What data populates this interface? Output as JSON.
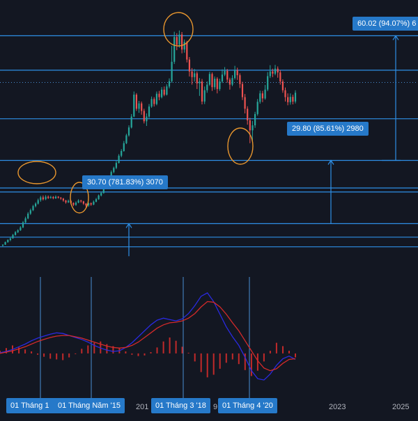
{
  "chart_data": {
    "type": "candlestick",
    "price": {
      "candles": [
        [
          3.8,
          4.1,
          3.5,
          4.2
        ],
        [
          4.1,
          4.9,
          4.0,
          5.1
        ],
        [
          4.9,
          5.6,
          4.7,
          5.8
        ],
        [
          5.6,
          6.1,
          5.2,
          6.4
        ],
        [
          6.1,
          7.2,
          6.0,
          7.5
        ],
        [
          7.2,
          8.1,
          7.0,
          8.4
        ],
        [
          8.1,
          8.7,
          7.8,
          9.0
        ],
        [
          8.7,
          9.6,
          8.5,
          10.0
        ],
        [
          9.6,
          11.2,
          9.4,
          11.6
        ],
        [
          11.2,
          12.5,
          11.0,
          13.0
        ],
        [
          12.5,
          14.0,
          12.2,
          14.5
        ],
        [
          14.0,
          15.1,
          13.6,
          15.6
        ],
        [
          15.1,
          16.4,
          14.8,
          16.8
        ],
        [
          16.4,
          17.2,
          16.0,
          17.6
        ],
        [
          17.2,
          18.3,
          16.9,
          18.8
        ],
        [
          18.3,
          19.2,
          17.8,
          19.7
        ],
        [
          19.2,
          18.6,
          18.2,
          19.8
        ],
        [
          18.6,
          19.4,
          18.3,
          19.9
        ],
        [
          19.4,
          19.0,
          18.7,
          19.8
        ],
        [
          19.0,
          19.3,
          18.8,
          19.7
        ],
        [
          19.3,
          18.9,
          18.6,
          19.6
        ],
        [
          18.9,
          19.4,
          18.7,
          19.8
        ],
        [
          19.4,
          19.1,
          18.8,
          19.6
        ],
        [
          19.1,
          18.8,
          18.4,
          19.3
        ],
        [
          18.8,
          18.2,
          17.8,
          19.0
        ],
        [
          18.2,
          17.6,
          17.2,
          18.4
        ],
        [
          17.6,
          18.1,
          17.4,
          18.5
        ],
        [
          18.1,
          17.4,
          16.9,
          18.3
        ],
        [
          17.4,
          16.8,
          16.4,
          17.6
        ],
        [
          16.8,
          17.5,
          16.5,
          17.9
        ],
        [
          17.5,
          18.2,
          17.3,
          18.6
        ],
        [
          18.2,
          17.9,
          17.5,
          18.4
        ],
        [
          17.9,
          17.2,
          16.8,
          18.1
        ],
        [
          17.2,
          16.6,
          15.6,
          17.4
        ],
        [
          16.6,
          17.3,
          16.2,
          17.6
        ],
        [
          17.3,
          16.9,
          16.5,
          17.6
        ],
        [
          16.9,
          17.8,
          16.7,
          18.2
        ],
        [
          17.8,
          18.6,
          17.6,
          19.0
        ],
        [
          18.6,
          19.8,
          18.4,
          20.1
        ],
        [
          19.8,
          20.6,
          19.5,
          21.0
        ],
        [
          20.6,
          22.1,
          20.4,
          22.5
        ],
        [
          22.1,
          23.8,
          21.9,
          24.2
        ],
        [
          23.8,
          25.2,
          23.4,
          25.6
        ],
        [
          25.2,
          27.3,
          25.0,
          27.8
        ],
        [
          27.3,
          28.6,
          26.9,
          29.0
        ],
        [
          28.6,
          30.2,
          28.2,
          30.8
        ],
        [
          30.2,
          32.5,
          30.0,
          33.0
        ],
        [
          32.5,
          34.0,
          32.0,
          34.6
        ],
        [
          34.0,
          36.5,
          33.8,
          37.2
        ],
        [
          36.5,
          39.0,
          36.2,
          39.5
        ],
        [
          39.0,
          41.5,
          38.6,
          42.2
        ],
        [
          41.5,
          45.0,
          41.2,
          45.8
        ],
        [
          45.0,
          52.0,
          44.8,
          53.0
        ],
        [
          52.0,
          47.5,
          46.8,
          52.5
        ],
        [
          47.5,
          49.2,
          46.2,
          50.0
        ],
        [
          49.2,
          46.8,
          45.6,
          49.8
        ],
        [
          46.8,
          43.5,
          42.8,
          47.5
        ],
        [
          43.5,
          45.0,
          42.0,
          46.0
        ],
        [
          45.0,
          48.2,
          44.5,
          49.0
        ],
        [
          48.2,
          50.6,
          47.8,
          51.4
        ],
        [
          50.6,
          49.0,
          48.2,
          51.2
        ],
        [
          49.0,
          52.3,
          48.6,
          53.0
        ],
        [
          52.3,
          51.2,
          50.2,
          53.2
        ],
        [
          51.2,
          53.6,
          50.8,
          54.4
        ],
        [
          53.6,
          52.0,
          51.5,
          54.6
        ],
        [
          52.0,
          54.6,
          51.7,
          55.3
        ],
        [
          54.6,
          56.3,
          54.0,
          57.2
        ],
        [
          56.3,
          62.5,
          55.8,
          67.6
        ],
        [
          62.5,
          70.4,
          61.8,
          72.1
        ],
        [
          70.4,
          67.9,
          66.2,
          71.6
        ],
        [
          67.9,
          71.2,
          67.0,
          72.5
        ],
        [
          71.2,
          66.4,
          65.2,
          72.0
        ],
        [
          66.4,
          68.8,
          65.4,
          69.6
        ],
        [
          68.8,
          63.2,
          62.3,
          69.2
        ],
        [
          63.2,
          59.4,
          57.8,
          64.0
        ],
        [
          59.4,
          57.6,
          55.2,
          60.5
        ],
        [
          57.6,
          58.8,
          56.2,
          60.2
        ],
        [
          58.8,
          55.6,
          53.8,
          59.4
        ],
        [
          55.6,
          56.2,
          51.6,
          57.3
        ],
        [
          56.2,
          49.8,
          48.9,
          57.0
        ],
        [
          49.8,
          53.4,
          49.0,
          54.6
        ],
        [
          53.4,
          55.2,
          52.6,
          56.2
        ],
        [
          55.2,
          58.6,
          54.8,
          59.3
        ],
        [
          58.6,
          54.4,
          53.2,
          59.1
        ],
        [
          54.4,
          57.1,
          53.6,
          57.8
        ],
        [
          57.1,
          53.8,
          52.4,
          57.6
        ],
        [
          53.8,
          56.2,
          53.2,
          57.1
        ],
        [
          56.2,
          58.4,
          55.7,
          60.1
        ],
        [
          58.4,
          59.6,
          57.9,
          60.8
        ],
        [
          59.6,
          56.8,
          55.8,
          60.2
        ],
        [
          56.8,
          55.2,
          53.6,
          57.4
        ],
        [
          55.2,
          57.3,
          54.7,
          58.2
        ],
        [
          57.3,
          59.8,
          56.8,
          61.2
        ],
        [
          59.8,
          58.2,
          56.7,
          60.6
        ],
        [
          58.2,
          55.4,
          54.1,
          58.8
        ],
        [
          55.4,
          51.2,
          50.3,
          56.1
        ],
        [
          51.2,
          47.5,
          46.0,
          52.2
        ],
        [
          47.5,
          43.8,
          42.4,
          48.3
        ],
        [
          43.8,
          40.6,
          36.5,
          44.6
        ],
        [
          40.6,
          42.2,
          37.2,
          43.6
        ],
        [
          42.2,
          45.8,
          41.4,
          46.5
        ],
        [
          45.8,
          49.7,
          45.3,
          50.6
        ],
        [
          49.7,
          52.4,
          49.1,
          53.3
        ],
        [
          52.4,
          50.8,
          49.6,
          53.2
        ],
        [
          50.8,
          53.6,
          50.4,
          55.1
        ],
        [
          53.6,
          57.9,
          53.1,
          59.2
        ],
        [
          57.9,
          59.4,
          57.3,
          61.4
        ],
        [
          59.4,
          58.7,
          57.6,
          60.3
        ],
        [
          58.7,
          60.3,
          58.2,
          61.5
        ],
        [
          60.3,
          59.1,
          57.4,
          61.0
        ],
        [
          59.1,
          56.2,
          55.2,
          59.8
        ],
        [
          56.2,
          53.4,
          52.6,
          56.9
        ],
        [
          53.4,
          51.2,
          49.8,
          54.3
        ],
        [
          51.2,
          49.6,
          48.6,
          52.4
        ],
        [
          49.6,
          51.3,
          48.8,
          52.4
        ],
        [
          51.3,
          49.8,
          48.9,
          52.0
        ],
        [
          49.8,
          52.6,
          49.2,
          53.4
        ]
      ],
      "y_range": [
        0,
        80
      ],
      "horizontal_levels": [
        3.4,
        6.5,
        10.8,
        20.9,
        22.2,
        31.0,
        44.3,
        55.9,
        59.8,
        70.8
      ],
      "dotted_level": 55.9,
      "annotations": [
        {
          "text": "60.02 (94.07%) 6",
          "kind": "measure"
        },
        {
          "text": "29.80 (85.61%) 2980",
          "kind": "measure"
        },
        {
          "text": "30.70 (781.83%) 3070",
          "kind": "measure"
        }
      ]
    },
    "macd": {
      "macd_line": [
        0.1,
        0.3,
        0.6,
        1.0,
        1.4,
        1.9,
        2.3,
        2.6,
        2.9,
        3.1,
        3.0,
        2.7,
        2.4,
        2.1,
        1.7,
        1.2,
        0.8,
        0.5,
        0.3,
        0.4,
        0.9,
        1.6,
        2.5,
        3.4,
        4.3,
        5.0,
        5.3,
        5.1,
        4.9,
        5.2,
        6.0,
        7.2,
        8.6,
        9.1,
        7.8,
        5.9,
        4.0,
        2.5,
        1.2,
        -0.6,
        -2.6,
        -3.8,
        -4.0,
        -3.1,
        -1.8,
        -0.8,
        -0.4,
        -0.9
      ],
      "signal_line": [
        0.0,
        0.2,
        0.4,
        0.7,
        1.0,
        1.4,
        1.8,
        2.1,
        2.4,
        2.6,
        2.7,
        2.7,
        2.5,
        2.3,
        2.0,
        1.7,
        1.4,
        1.1,
        0.9,
        0.8,
        0.9,
        1.2,
        1.7,
        2.4,
        3.1,
        3.8,
        4.3,
        4.6,
        4.7,
        4.9,
        5.3,
        6.0,
        7.0,
        7.8,
        7.7,
        7.0,
        5.9,
        4.6,
        3.4,
        1.9,
        0.4,
        -1.1,
        -2.2,
        -2.6,
        -2.3,
        -1.5,
        -0.9,
        -0.8
      ],
      "histogram": [
        0.4,
        0.8,
        1.2,
        0.9,
        0.6,
        0.3,
        -0.2,
        -0.5,
        -0.8,
        -0.9,
        -1.0,
        -0.6,
        -0.1,
        0.7,
        1.2,
        1.6,
        1.8,
        1.4,
        1.1,
        0.8,
        0.3,
        -0.2,
        -0.4,
        -0.3,
        0.2,
        0.9,
        1.8,
        2.4,
        1.9,
        1.0,
        0.1,
        -1.2,
        -2.8,
        -3.6,
        -3.2,
        -2.3,
        -1.4,
        -0.9,
        -1.6,
        -2.5,
        -3.4,
        -2.6,
        -1.2,
        0.4,
        1.6,
        1.1,
        0.4,
        -0.6
      ],
      "y_range": [
        -6.5,
        11.5
      ]
    },
    "x_axis": {
      "labels": [
        "201",
        "9",
        "2023",
        "2025"
      ],
      "highlighted_dates": [
        "01 Tháng 1",
        "01 Tháng Năm '15",
        "01 Tháng 3 '18",
        "01 Tháng 4 '20"
      ]
    }
  },
  "colors": {
    "background": "#131722",
    "up_candle": "#26a69a",
    "down_candle": "#ef5350",
    "level_line": "#2e8fe6",
    "macd_line": "#2a2ae0",
    "signal_line": "#d42a2a",
    "histogram": "#c22a2a",
    "annotation_tag": "#2679c9",
    "circle_marker": "#e8962e",
    "grid_text": "#b2b5be"
  }
}
